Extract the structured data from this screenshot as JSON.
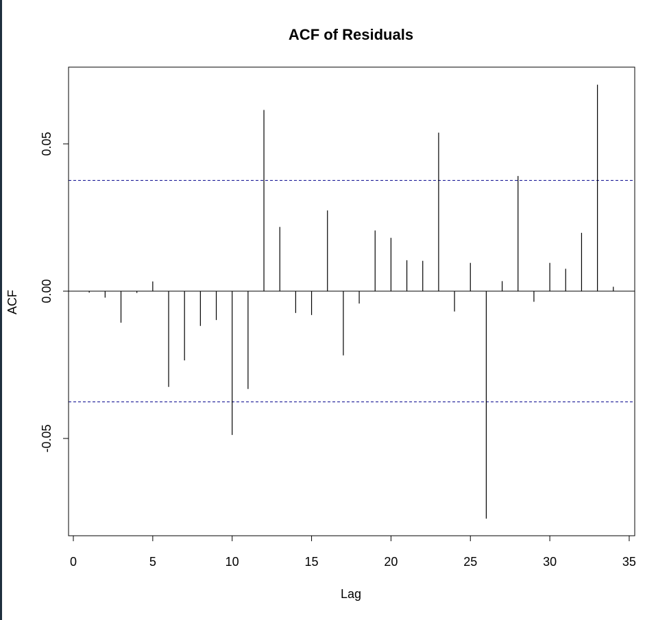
{
  "chart_data": {
    "type": "bar",
    "title": "ACF of Residuals",
    "xlabel": "Lag",
    "ylabel": "ACF",
    "xlim": [
      0,
      35
    ],
    "ylim": [
      -0.083,
      0.076
    ],
    "x_ticks": [
      0,
      5,
      10,
      15,
      20,
      25,
      30,
      35
    ],
    "x_tick_labels": [
      "0",
      "5",
      "10",
      "15",
      "20",
      "25",
      "30",
      "35"
    ],
    "y_ticks": [
      -0.05,
      0.0,
      0.05
    ],
    "y_tick_labels": [
      "-0.05",
      "0.00",
      "0.05"
    ],
    "confidence_bounds": [
      0.0376,
      -0.0376
    ],
    "confidence_color": "#00008b",
    "grid": false,
    "lags": [
      1,
      2,
      3,
      4,
      5,
      6,
      7,
      8,
      9,
      10,
      11,
      12,
      13,
      14,
      15,
      16,
      17,
      18,
      19,
      20,
      21,
      22,
      23,
      24,
      25,
      26,
      27,
      28,
      29,
      30,
      31,
      32,
      33,
      34
    ],
    "values": [
      -0.0005,
      -0.0022,
      -0.0107,
      -0.0006,
      0.0033,
      -0.0325,
      -0.0235,
      -0.0118,
      -0.0098,
      -0.0488,
      -0.0332,
      0.0615,
      0.0218,
      -0.0074,
      -0.0081,
      0.0274,
      -0.0218,
      -0.0042,
      0.0206,
      0.0181,
      0.0105,
      0.0103,
      0.0538,
      -0.0069,
      0.0096,
      -0.0772,
      0.0034,
      0.0391,
      -0.0036,
      0.0096,
      0.0076,
      0.0198,
      0.0701,
      0.0015
    ]
  }
}
